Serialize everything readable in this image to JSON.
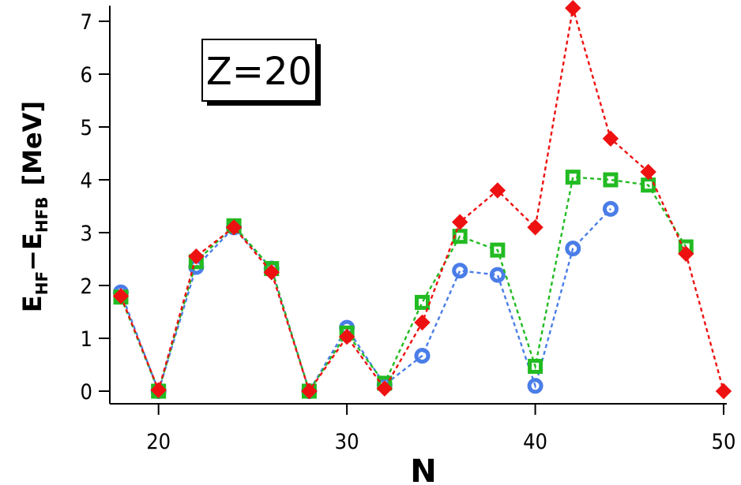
{
  "chart_data": {
    "type": "line",
    "annotation": "Z=20",
    "xlabel": "N",
    "ylabel": {
      "main": "E",
      "sub1": "HF",
      "mid": "−E",
      "sub2": "HFB",
      "unit": "[MeV]"
    },
    "xlim": [
      18,
      50
    ],
    "ylim": [
      -0.25,
      7.25
    ],
    "xticks": [
      20,
      30,
      40,
      50
    ],
    "yticks": [
      0,
      1,
      2,
      3,
      4,
      5,
      6,
      7
    ],
    "grid": false,
    "series": [
      {
        "marker": "circle",
        "color": "#4a7de8",
        "points": [
          [
            18,
            1.87
          ],
          [
            20,
            0.0
          ],
          [
            22,
            2.35
          ],
          [
            24,
            3.1
          ],
          [
            26,
            2.32
          ],
          [
            28,
            0.0
          ],
          [
            30,
            1.2
          ],
          [
            32,
            0.12
          ],
          [
            34,
            0.67
          ],
          [
            36,
            2.28
          ],
          [
            38,
            2.2
          ],
          [
            40,
            0.1
          ],
          [
            42,
            2.7
          ],
          [
            44,
            3.45
          ]
        ]
      },
      {
        "marker": "square",
        "color": "#22bb22",
        "points": [
          [
            18,
            1.78
          ],
          [
            20,
            0.0
          ],
          [
            22,
            2.45
          ],
          [
            24,
            3.13
          ],
          [
            26,
            2.32
          ],
          [
            28,
            0.0
          ],
          [
            30,
            1.1
          ],
          [
            32,
            0.15
          ],
          [
            34,
            1.68
          ],
          [
            36,
            2.93
          ],
          [
            38,
            2.67
          ],
          [
            40,
            0.47
          ],
          [
            42,
            4.05
          ],
          [
            44,
            4.0
          ],
          [
            46,
            3.9
          ],
          [
            48,
            2.73
          ]
        ]
      },
      {
        "marker": "diamond",
        "color": "#ee1111",
        "points": [
          [
            18,
            1.8
          ],
          [
            20,
            0.02
          ],
          [
            22,
            2.55
          ],
          [
            24,
            3.1
          ],
          [
            26,
            2.25
          ],
          [
            28,
            0.0
          ],
          [
            30,
            1.03
          ],
          [
            32,
            0.05
          ],
          [
            34,
            1.3
          ],
          [
            36,
            3.2
          ],
          [
            38,
            3.8
          ],
          [
            40,
            3.1
          ],
          [
            42,
            7.25
          ],
          [
            44,
            4.78
          ],
          [
            46,
            4.15
          ],
          [
            48,
            2.6
          ],
          [
            50,
            0.0
          ]
        ]
      }
    ]
  }
}
